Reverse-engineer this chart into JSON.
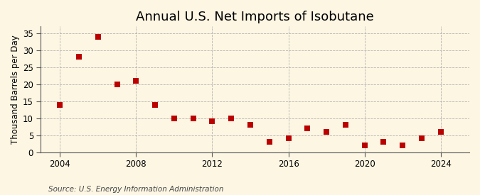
{
  "title": "Annual U.S. Net Imports of Isobutane",
  "ylabel": "Thousand Barrels per Day",
  "source": "Source: U.S. Energy Information Administration",
  "years": [
    2004,
    2005,
    2006,
    2007,
    2008,
    2009,
    2010,
    2011,
    2012,
    2013,
    2014,
    2015,
    2016,
    2017,
    2018,
    2019,
    2020,
    2021,
    2022,
    2023,
    2024
  ],
  "values": [
    14,
    28,
    34,
    20,
    21,
    14,
    10,
    10,
    9,
    10,
    8,
    3,
    4,
    7,
    6,
    8,
    2,
    3,
    2,
    4,
    6
  ],
  "marker_color": "#bb0000",
  "marker_size": 28,
  "background_color": "#fdf6e3",
  "grid_color": "#aaaaaa",
  "xlim": [
    2003.0,
    2025.5
  ],
  "ylim": [
    0,
    37
  ],
  "yticks": [
    0,
    5,
    10,
    15,
    20,
    25,
    30,
    35
  ],
  "xticks": [
    2004,
    2008,
    2012,
    2016,
    2020,
    2024
  ],
  "title_fontsize": 13,
  "ylabel_fontsize": 8.5,
  "source_fontsize": 7.5,
  "tick_fontsize": 8.5
}
